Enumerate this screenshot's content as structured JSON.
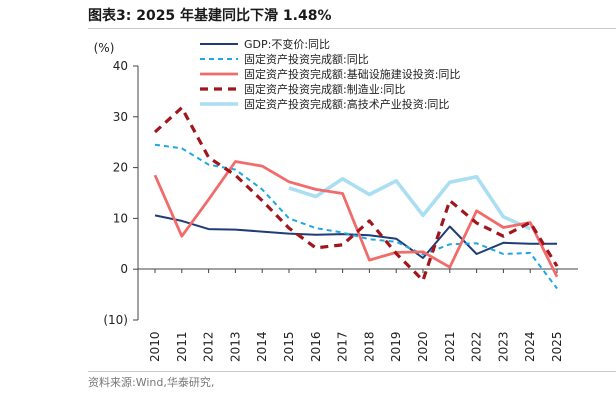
{
  "figure": {
    "title": "图表3:  2025 年基建同比下滑 1.48%",
    "source": "资料来源:Wind,华泰研究,"
  },
  "chart_data": {
    "type": "line",
    "y_unit": "(%)",
    "ylim": [
      -10,
      40
    ],
    "yticks": [
      -10,
      0,
      10,
      20,
      30,
      40
    ],
    "ytick_labels": [
      "(10)",
      "0",
      "10",
      "20",
      "30",
      "40"
    ],
    "x": [
      "2010",
      "2011",
      "2012",
      "2013",
      "2014",
      "2015",
      "2016",
      "2017",
      "2018",
      "2019",
      "2020",
      "2021",
      "2022",
      "2023",
      "2024",
      "2025"
    ],
    "grid": false,
    "legend_position": "top",
    "series": [
      {
        "name": "GDP:不变价:同比",
        "color": "#1f3c78",
        "dash": "solid",
        "points": [
          [
            0,
            10.6
          ],
          [
            1,
            9.5
          ],
          [
            2,
            7.9
          ],
          [
            3,
            7.8
          ],
          [
            4,
            7.4
          ],
          [
            5,
            7.0
          ],
          [
            6,
            6.8
          ],
          [
            7,
            6.9
          ],
          [
            8,
            6.7
          ],
          [
            9,
            6.0
          ],
          [
            10,
            2.2
          ],
          [
            11,
            8.4
          ],
          [
            12,
            3.0
          ],
          [
            13,
            5.2
          ],
          [
            14,
            5.0
          ],
          [
            15,
            5.0
          ]
        ]
      },
      {
        "name": "固定资产投资完成额:同比",
        "color": "#1fa7e0",
        "dash": "dashed-fine",
        "points": [
          [
            0,
            24.5
          ],
          [
            1,
            23.8
          ],
          [
            2,
            20.6
          ],
          [
            3,
            19.6
          ],
          [
            4,
            15.7
          ],
          [
            5,
            10.0
          ],
          [
            6,
            8.1
          ],
          [
            7,
            7.2
          ],
          [
            8,
            5.9
          ],
          [
            9,
            5.4
          ],
          [
            10,
            2.9
          ],
          [
            11,
            4.9
          ],
          [
            12,
            5.1
          ],
          [
            13,
            3.0
          ],
          [
            14,
            3.2
          ],
          [
            15,
            -3.8
          ]
        ]
      },
      {
        "name": "固定资产投资完成额:基础设施建设投资:同比",
        "color": "#f26b6b",
        "dash": "solid",
        "points": [
          [
            0,
            18.5
          ],
          [
            1,
            6.5
          ],
          [
            2,
            13.7
          ],
          [
            3,
            21.2
          ],
          [
            4,
            20.3
          ],
          [
            5,
            17.2
          ],
          [
            6,
            15.7
          ],
          [
            7,
            14.9
          ],
          [
            8,
            1.8
          ],
          [
            9,
            3.3
          ],
          [
            10,
            3.4
          ],
          [
            11,
            0.4
          ],
          [
            12,
            11.5
          ],
          [
            13,
            8.2
          ],
          [
            14,
            9.2
          ],
          [
            15,
            -1.5
          ]
        ]
      },
      {
        "name": "固定资产投资完成额:制造业:同比",
        "color": "#a0161c",
        "dash": "dashed-bold",
        "points": [
          [
            0,
            27.0
          ],
          [
            1,
            31.8
          ],
          [
            2,
            22.0
          ],
          [
            3,
            18.5
          ],
          [
            4,
            13.5
          ],
          [
            5,
            8.1
          ],
          [
            6,
            4.2
          ],
          [
            7,
            4.8
          ],
          [
            8,
            9.5
          ],
          [
            9,
            3.1
          ],
          [
            10,
            -2.2
          ],
          [
            11,
            13.5
          ],
          [
            12,
            9.1
          ],
          [
            13,
            6.5
          ],
          [
            14,
            9.2
          ],
          [
            15,
            0.6
          ]
        ]
      },
      {
        "name": "固定资产投资完成额:高技术产业投资:同比",
        "color": "#a9def3",
        "dash": "solid",
        "points": [
          [
            5,
            16.0
          ],
          [
            6,
            14.3
          ],
          [
            7,
            17.8
          ],
          [
            8,
            14.7
          ],
          [
            9,
            17.4
          ],
          [
            10,
            10.6
          ],
          [
            11,
            17.1
          ],
          [
            12,
            18.2
          ],
          [
            13,
            10.3
          ],
          [
            14,
            8.0
          ]
        ]
      }
    ]
  }
}
